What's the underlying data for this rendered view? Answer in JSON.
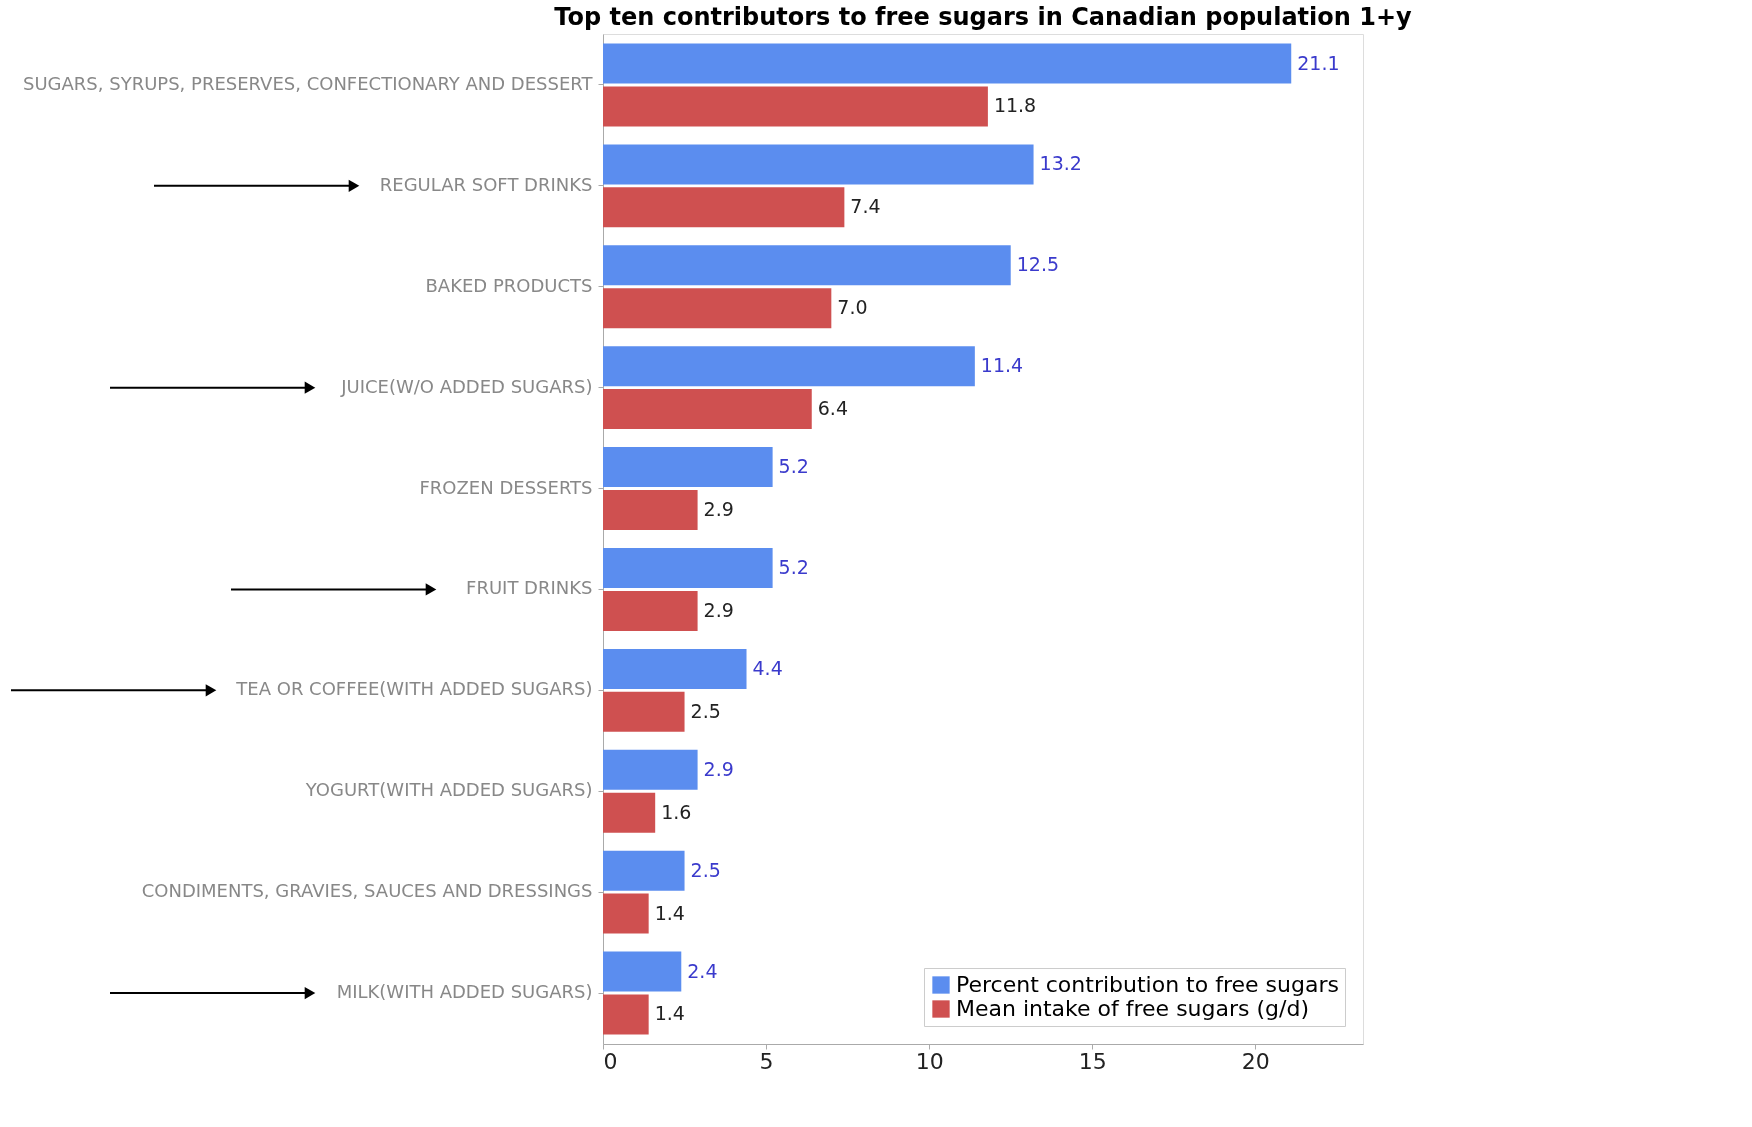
{
  "chart_data": {
    "type": "bar",
    "orientation": "horizontal",
    "title": "Top ten contributors to free sugars in Canadian population 1+y",
    "categories": [
      "SUGARS, SYRUPS, PRESERVES, CONFECTIONARY AND DESSERT",
      "REGULAR SOFT DRINKS",
      "BAKED PRODUCTS",
      "JUICE(W/O ADDED SUGARS)",
      "FROZEN DESSERTS",
      "FRUIT DRINKS",
      "TEA OR COFFEE(WITH ADDED SUGARS)",
      "YOGURT(WITH ADDED SUGARS)",
      "CONDIMENTS, GRAVIES, SAUCES AND DRESSINGS",
      "MILK(WITH ADDED SUGARS)"
    ],
    "series": [
      {
        "name": "Percent contribution to free sugars",
        "color": "#5b8def",
        "values": [
          21.1,
          13.2,
          12.5,
          11.4,
          5.2,
          5.2,
          4.4,
          2.9,
          2.5,
          2.4
        ],
        "value_labels": [
          "21.1",
          "13.2",
          "12.5",
          "11.4",
          "5.2",
          "5.2",
          "4.4",
          "2.9",
          "2.5",
          "2.4"
        ]
      },
      {
        "name": "Mean intake of free sugars (g/d)",
        "color": "#cf5050",
        "values": [
          11.8,
          7.4,
          7.0,
          6.4,
          2.9,
          2.9,
          2.5,
          1.6,
          1.4,
          1.4
        ],
        "value_labels": [
          "11.8",
          "7.4",
          "7.0",
          "6.4",
          "2.9",
          "2.9",
          "2.5",
          "1.6",
          "1.4",
          "1.4"
        ]
      }
    ],
    "xlim": [
      0,
      23.3
    ],
    "xticks": [
      0,
      5,
      10,
      15,
      20
    ],
    "legend": "bottom right",
    "grid": false
  }
}
